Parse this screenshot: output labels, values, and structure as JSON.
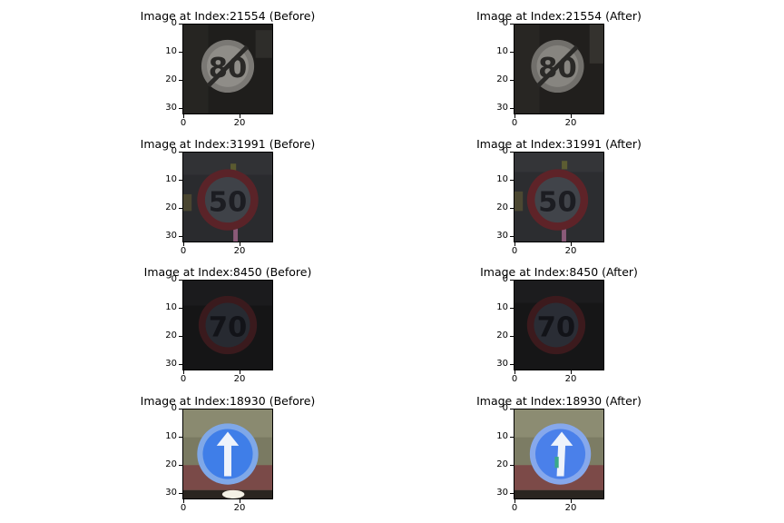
{
  "panels": [
    {
      "title": "Image at Index:21554 (Before)",
      "sign": "end-speed-80"
    },
    {
      "title": "Image at Index:21554 (After)",
      "sign": "end-speed-80"
    },
    {
      "title": "Image at Index:31991 (Before)",
      "sign": "speed-limit-50"
    },
    {
      "title": "Image at Index:31991 (After)",
      "sign": "speed-limit-50"
    },
    {
      "title": "Image at Index:8450 (Before)",
      "sign": "speed-limit-70"
    },
    {
      "title": "Image at Index:8450 (After)",
      "sign": "speed-limit-70"
    },
    {
      "title": "Image at Index:18930 (Before)",
      "sign": "ahead-only"
    },
    {
      "title": "Image at Index:18930 (After)",
      "sign": "ahead-only"
    }
  ],
  "axes": {
    "y_ticks": [
      "0",
      "10",
      "20",
      "30"
    ],
    "x_ticks": [
      "0",
      "20"
    ]
  },
  "colors": {
    "axis": "#000000",
    "background": "#ffffff"
  }
}
